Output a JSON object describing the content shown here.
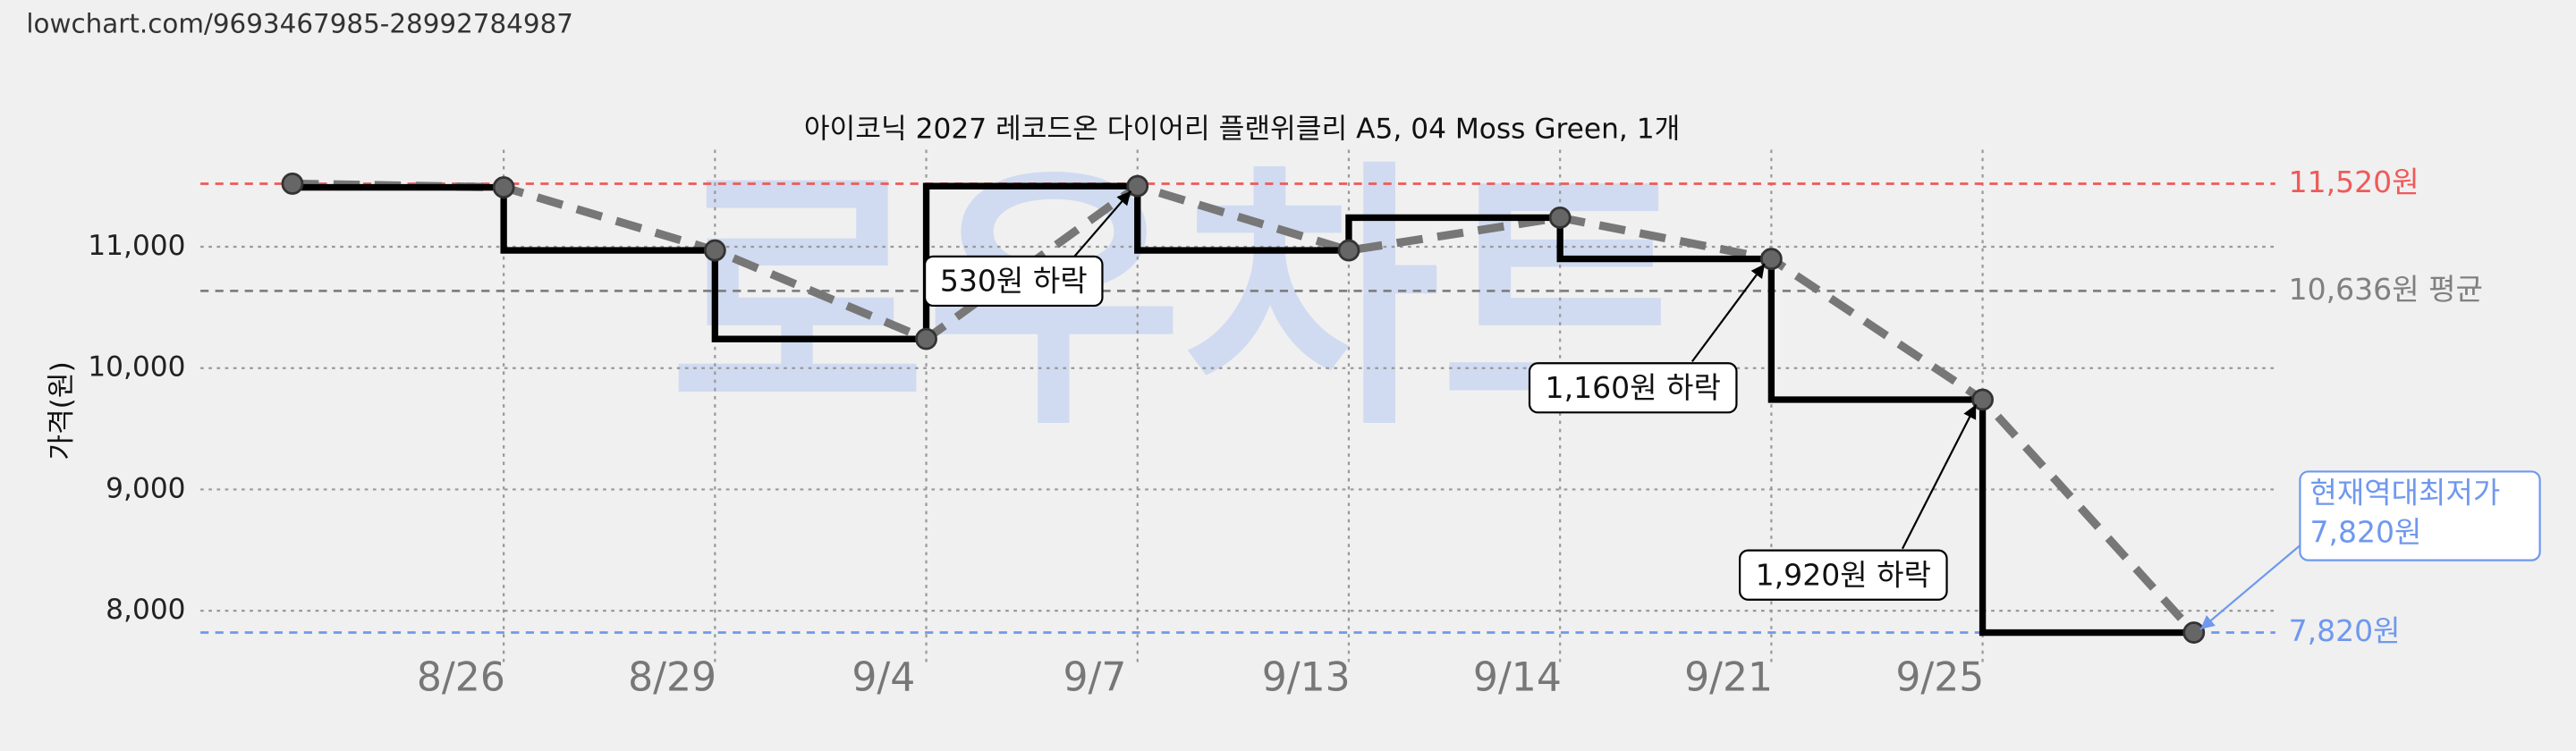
{
  "chart_data": {
    "type": "step-line",
    "url": "lowchart.com/9693467985-28992784987",
    "watermark": "로우차트",
    "title": "아이코닉 2027 레코드온 다이어리 플랜위클리 A5, 04 Moss Green, 1개",
    "y_label": "가격(원)",
    "categories": [
      null,
      "8/26",
      "8/29",
      "9/4",
      "9/7",
      "9/13",
      "9/14",
      "9/21",
      "9/25",
      null
    ],
    "series": [
      {
        "color": "#000000",
        "values": [
          11520,
          11490,
          10970,
          10240,
          11500,
          10970,
          11240,
          10900,
          9740,
          7820
        ]
      }
    ],
    "trend_color": "#777777",
    "ylim": [
      7550,
      11800
    ],
    "yticks": [
      {
        "value": 8000,
        "label": "8,000"
      },
      {
        "value": 9000,
        "label": "9,000"
      },
      {
        "value": 10000,
        "label": "10,000"
      },
      {
        "value": 11000,
        "label": "11,000"
      }
    ],
    "grid": true,
    "hlines": [
      {
        "value": 11520,
        "label": "11,520원",
        "color": "#ee5a5a"
      },
      {
        "value": 10636,
        "label": "10,636원 평균",
        "color": "#808080"
      },
      {
        "value": 7820,
        "label": "7,820원",
        "color": "#6f98ee"
      }
    ],
    "annotations": [
      {
        "text": "530원 하락"
      },
      {
        "text": "1,160원 하락"
      },
      {
        "text": "1,920원 하락"
      },
      {
        "lines": [
          "현재역대최저가",
          "7,820원"
        ],
        "color": "#6f98ee"
      }
    ]
  }
}
